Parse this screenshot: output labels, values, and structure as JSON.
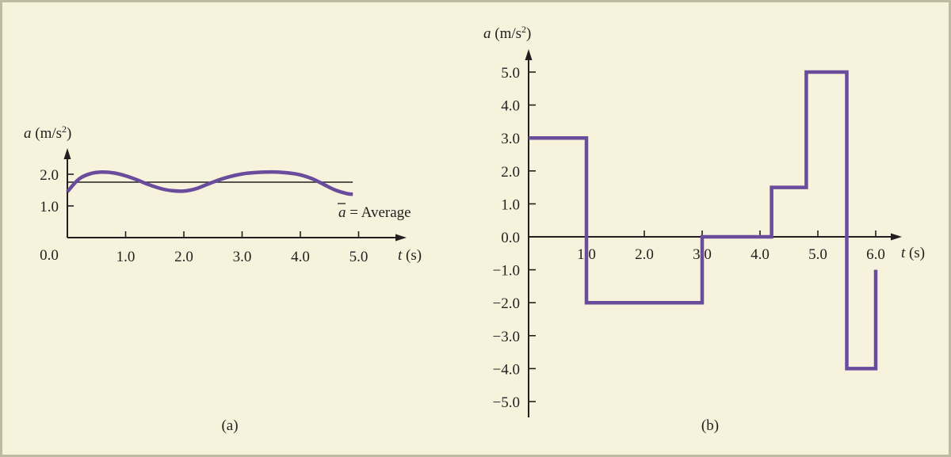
{
  "colors": {
    "background": "#f6f2dc",
    "border": "#bfbba3",
    "curve": "#6a4c9c",
    "axis": "#231f20"
  },
  "chart_data": [
    {
      "type": "line",
      "panel_label": "(a)",
      "ylabel_var": "a",
      "ylabel_unit": " (m/s",
      "ylabel_exp": "2",
      "ylabel_close": ")",
      "xlabel_var": "t",
      "xlabel_unit": " (s)",
      "origin_label": "0.0",
      "xlim": [
        0,
        5.0
      ],
      "ylim": [
        0,
        2.2
      ],
      "x_ticks": [
        1.0,
        2.0,
        3.0,
        4.0,
        5.0
      ],
      "x_tick_labels": [
        "1.0",
        "2.0",
        "3.0",
        "4.0",
        "5.0"
      ],
      "y_ticks": [
        1.0,
        2.0
      ],
      "y_tick_labels": [
        "1.0",
        "2.0"
      ],
      "series": [
        {
          "x": [
            0,
            0.2,
            0.4,
            0.6,
            0.8,
            1.0,
            1.2,
            1.4,
            1.6,
            1.8,
            2.0,
            2.2,
            2.4,
            2.6,
            2.8,
            3.0,
            3.2,
            3.4,
            3.6,
            3.8,
            4.0,
            4.2,
            4.4,
            4.6,
            4.8,
            4.9
          ],
          "y": [
            1.45,
            1.85,
            2.02,
            2.07,
            2.04,
            1.95,
            1.82,
            1.67,
            1.55,
            1.48,
            1.47,
            1.54,
            1.68,
            1.82,
            1.93,
            2.01,
            2.05,
            2.07,
            2.07,
            2.04,
            1.98,
            1.86,
            1.68,
            1.5,
            1.39,
            1.37
          ]
        }
      ],
      "average_value": 1.75,
      "average_symbol": "a",
      "average_text": " = Average"
    },
    {
      "type": "line",
      "panel_label": "(b)",
      "ylabel_var": "a",
      "ylabel_unit": " (m/s",
      "ylabel_exp": "2",
      "ylabel_close": ")",
      "xlabel_var": "t",
      "xlabel_unit": " (s)",
      "xlim": [
        0,
        6.0
      ],
      "ylim": [
        -5.0,
        5.0
      ],
      "x_ticks": [
        1.0,
        2.0,
        3.0,
        4.0,
        5.0,
        6.0
      ],
      "x_tick_labels": [
        "1.0",
        "2.0",
        "3.0",
        "4.0",
        "5.0",
        "6.0"
      ],
      "y_ticks": [
        5.0,
        4.0,
        3.0,
        2.0,
        1.0,
        0.0,
        -1.0,
        -2.0,
        -3.0,
        -4.0,
        -5.0
      ],
      "y_tick_labels": [
        "5.0",
        "4.0",
        "3.0",
        "2.0",
        "1.0",
        "0.0",
        "−1.0",
        "−2.0",
        "−3.0",
        "−4.0",
        "−5.0"
      ],
      "series": [
        {
          "x": [
            0,
            1.0,
            1.0,
            3.0,
            3.0,
            4.2,
            4.2,
            4.8,
            4.8,
            5.5,
            5.5,
            6.0,
            6.0
          ],
          "y": [
            3.0,
            3.0,
            -2.0,
            -2.0,
            0.0,
            0.0,
            1.5,
            1.5,
            5.0,
            5.0,
            -4.0,
            -4.0,
            -1.0
          ]
        }
      ]
    }
  ]
}
